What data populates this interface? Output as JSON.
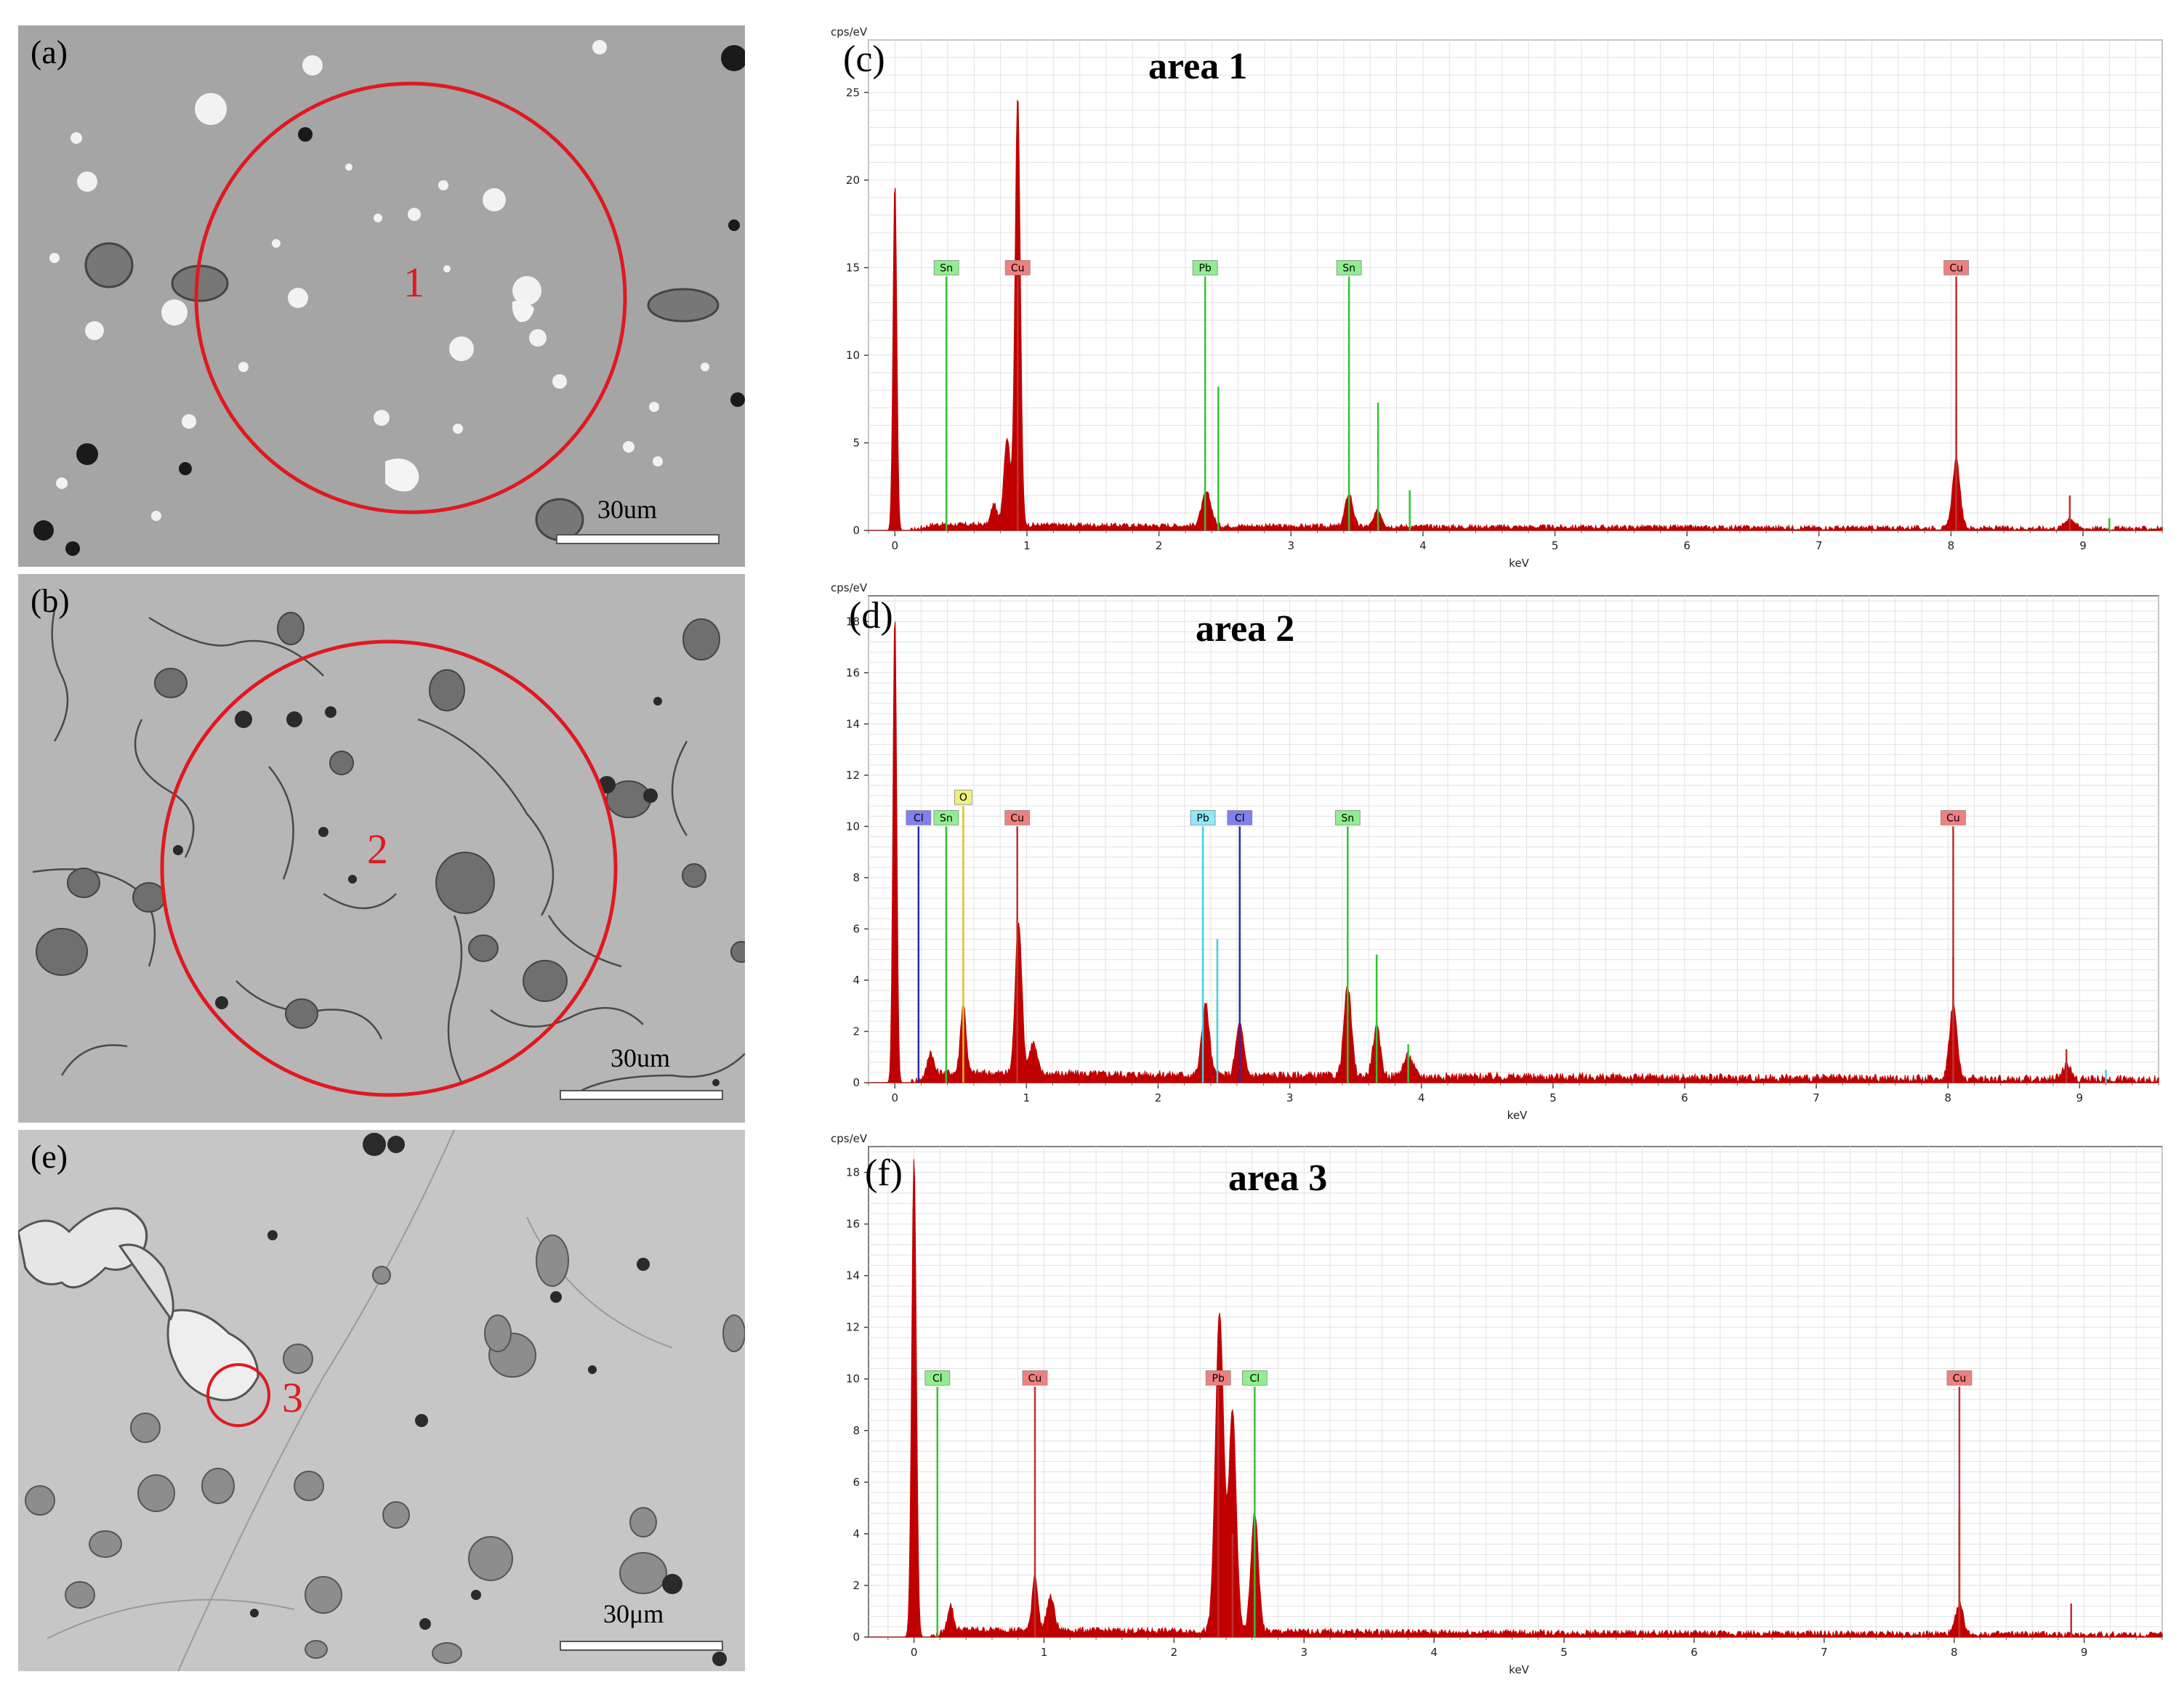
{
  "micrographs": [
    {
      "id": "a",
      "letter": "(a)",
      "area_number": "1",
      "scale": "30um",
      "background": "#a5a5a5",
      "circle_color": "#e0191e"
    },
    {
      "id": "b",
      "letter": "(b)",
      "area_number": "2",
      "scale": "30um",
      "background": "#b6b6b6",
      "circle_color": "#e0191e"
    },
    {
      "id": "e",
      "letter": "(e)",
      "area_number": "3",
      "scale": "30μm",
      "background": "#c6c6c6",
      "circle_color": "#e0191e"
    }
  ],
  "chart_data": [
    {
      "type": "area",
      "panel": "(c)",
      "title": "area 1",
      "xlabel": "keV",
      "ylabel": "cps/eV",
      "xlim": [
        -0.2,
        9.6
      ],
      "ylim": [
        0,
        28
      ],
      "xticks": [
        0,
        1,
        2,
        3,
        4,
        5,
        6,
        7,
        8,
        9
      ],
      "yticks": [
        0,
        5,
        10,
        15,
        20,
        25
      ],
      "grid": true,
      "fill_color": "#c00000",
      "peaks": [
        {
          "x": 0.0,
          "y": 20.0,
          "w": 0.02
        },
        {
          "x": 0.75,
          "y": 1.2,
          "w": 0.03
        },
        {
          "x": 0.85,
          "y": 5.0,
          "w": 0.035
        },
        {
          "x": 0.93,
          "y": 24.5,
          "w": 0.028
        },
        {
          "x": 2.36,
          "y": 1.9,
          "w": 0.05
        },
        {
          "x": 3.44,
          "y": 1.9,
          "w": 0.04
        },
        {
          "x": 3.66,
          "y": 0.9,
          "w": 0.04
        },
        {
          "x": 8.04,
          "y": 3.9,
          "w": 0.04
        },
        {
          "x": 8.9,
          "y": 0.6,
          "w": 0.05
        }
      ],
      "background_level": 0.35,
      "lines": [
        {
          "label": "Sn",
          "x": 0.39,
          "height": 14.5,
          "color": "#34c234",
          "tag": "#90ee90"
        },
        {
          "label": "Cu",
          "x": 0.93,
          "height": 14.5,
          "color": "#c03030",
          "tag": "#f08080"
        },
        {
          "label": "Pb",
          "x": 2.35,
          "height": 14.5,
          "color": "#34c234",
          "tag": "#90ee90"
        },
        {
          "label": "Sn",
          "x": 3.44,
          "height": 14.5,
          "color": "#34c234",
          "tag": "#90ee90"
        },
        {
          "label": "Cu",
          "x": 8.04,
          "height": 14.5,
          "color": "#c03030",
          "tag": "#f08080"
        }
      ],
      "minor_lines": [
        {
          "x": 2.45,
          "height": 8.2,
          "color": "#34c234"
        },
        {
          "x": 3.66,
          "height": 7.3,
          "color": "#34c234"
        },
        {
          "x": 3.9,
          "height": 2.3,
          "color": "#34c234"
        },
        {
          "x": 8.04,
          "height": 7.2,
          "color": "#c03030"
        },
        {
          "x": 8.9,
          "height": 2.0,
          "color": "#c03030"
        },
        {
          "x": 9.2,
          "height": 0.7,
          "color": "#34c234"
        }
      ]
    },
    {
      "type": "area",
      "panel": "(d)",
      "title": "area 2",
      "xlabel": "keV",
      "ylabel": "cps/eV",
      "xlim": [
        -0.2,
        9.6
      ],
      "ylim": [
        0,
        19
      ],
      "xticks": [
        0,
        1,
        2,
        3,
        4,
        5,
        6,
        7,
        8,
        9
      ],
      "yticks": [
        0,
        2,
        4,
        6,
        8,
        10,
        12,
        14,
        16,
        18
      ],
      "grid": true,
      "fill_color": "#c00000",
      "peaks": [
        {
          "x": 0.0,
          "y": 18.4,
          "w": 0.02
        },
        {
          "x": 0.27,
          "y": 0.9,
          "w": 0.03
        },
        {
          "x": 0.52,
          "y": 2.7,
          "w": 0.03
        },
        {
          "x": 0.94,
          "y": 6.0,
          "w": 0.035
        },
        {
          "x": 1.05,
          "y": 1.2,
          "w": 0.04
        },
        {
          "x": 2.36,
          "y": 2.8,
          "w": 0.04
        },
        {
          "x": 2.62,
          "y": 2.0,
          "w": 0.04
        },
        {
          "x": 3.44,
          "y": 3.5,
          "w": 0.04
        },
        {
          "x": 3.66,
          "y": 1.9,
          "w": 0.04
        },
        {
          "x": 3.9,
          "y": 0.8,
          "w": 0.05
        },
        {
          "x": 8.04,
          "y": 2.9,
          "w": 0.04
        },
        {
          "x": 8.9,
          "y": 0.5,
          "w": 0.05
        }
      ],
      "background_level": 0.4,
      "lines": [
        {
          "label": "Cl",
          "x": 0.18,
          "height": 10.0,
          "color": "#2a2ab0",
          "tag": "#8080f0"
        },
        {
          "label": "Sn",
          "x": 0.39,
          "height": 10.0,
          "color": "#34c234",
          "tag": "#90ee90"
        },
        {
          "label": "O",
          "x": 0.52,
          "height": 10.8,
          "color": "#e0c020",
          "tag": "#f0f080"
        },
        {
          "label": "Cu",
          "x": 0.93,
          "height": 10.0,
          "color": "#c03030",
          "tag": "#f08080"
        },
        {
          "label": "Pb",
          "x": 2.34,
          "height": 10.0,
          "color": "#40d0e0",
          "tag": "#90e8f8"
        },
        {
          "label": "Cl",
          "x": 2.62,
          "height": 10.0,
          "color": "#2a2ab0",
          "tag": "#8080f0"
        },
        {
          "label": "Sn",
          "x": 3.44,
          "height": 10.0,
          "color": "#34c234",
          "tag": "#90ee90"
        },
        {
          "label": "Cu",
          "x": 8.04,
          "height": 10.0,
          "color": "#c03030",
          "tag": "#f08080"
        }
      ],
      "minor_lines": [
        {
          "x": 2.45,
          "height": 5.6,
          "color": "#40d0e0"
        },
        {
          "x": 3.66,
          "height": 5.0,
          "color": "#34c234"
        },
        {
          "x": 3.9,
          "height": 1.5,
          "color": "#34c234"
        },
        {
          "x": 8.04,
          "height": 4.9,
          "color": "#c03030"
        },
        {
          "x": 8.9,
          "height": 1.3,
          "color": "#c03030"
        },
        {
          "x": 9.2,
          "height": 0.5,
          "color": "#40d0e0"
        }
      ]
    },
    {
      "type": "area",
      "panel": "(f)",
      "title": "area 3",
      "xlabel": "keV",
      "ylabel": "cps/eV",
      "xlim": [
        -0.35,
        9.6
      ],
      "ylim": [
        0,
        19
      ],
      "xticks": [
        0,
        1,
        2,
        3,
        4,
        5,
        6,
        7,
        8,
        9
      ],
      "yticks": [
        0,
        2,
        4,
        6,
        8,
        10,
        12,
        14,
        16,
        18
      ],
      "grid": true,
      "fill_color": "#c00000",
      "peaks": [
        {
          "x": 0.0,
          "y": 18.6,
          "w": 0.025
        },
        {
          "x": 0.28,
          "y": 1.0,
          "w": 0.03
        },
        {
          "x": 0.93,
          "y": 2.2,
          "w": 0.03
        },
        {
          "x": 1.05,
          "y": 1.3,
          "w": 0.04
        },
        {
          "x": 2.35,
          "y": 12.3,
          "w": 0.045
        },
        {
          "x": 2.45,
          "y": 8.5,
          "w": 0.04
        },
        {
          "x": 2.62,
          "y": 4.6,
          "w": 0.04
        },
        {
          "x": 8.04,
          "y": 1.2,
          "w": 0.04
        }
      ],
      "background_level": 0.3,
      "lines": [
        {
          "label": "Cl",
          "x": 0.18,
          "height": 9.7,
          "color": "#34c234",
          "tag": "#90ee90"
        },
        {
          "label": "Cu",
          "x": 0.93,
          "height": 9.7,
          "color": "#c03030",
          "tag": "#f08080"
        },
        {
          "label": "Pb",
          "x": 2.34,
          "height": 9.7,
          "color": "#c03030",
          "tag": "#f08080"
        },
        {
          "label": "Cl",
          "x": 2.62,
          "height": 9.7,
          "color": "#34c234",
          "tag": "#90ee90"
        },
        {
          "label": "Cu",
          "x": 8.04,
          "height": 9.7,
          "color": "#c03030",
          "tag": "#f08080"
        }
      ],
      "minor_lines": [
        {
          "x": 8.04,
          "height": 5.0,
          "color": "#c03030"
        },
        {
          "x": 8.9,
          "height": 1.3,
          "color": "#c03030"
        },
        {
          "x": 2.45,
          "height": 4.0,
          "color": "#c03030"
        }
      ]
    }
  ]
}
